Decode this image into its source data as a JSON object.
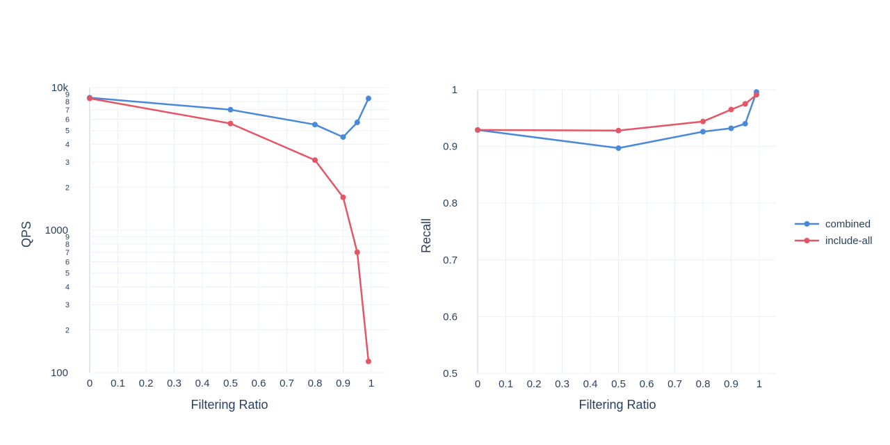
{
  "chart_data": [
    {
      "type": "line",
      "xlabel": "Filtering Ratio",
      "ylabel": "QPS",
      "yscale": "log",
      "xlim": [
        0,
        1
      ],
      "ylim": [
        100,
        10000
      ],
      "x_ticks": [
        "0",
        "0.1",
        "0.2",
        "0.3",
        "0.4",
        "0.5",
        "0.6",
        "0.7",
        "0.8",
        "0.9",
        "1"
      ],
      "y_major_ticks": [
        {
          "value": 100,
          "label": "100"
        },
        {
          "value": 1000,
          "label": "1000"
        },
        {
          "value": 10000,
          "label": "10k"
        }
      ],
      "y_minor_ticks": [
        {
          "value": 200,
          "label": "2"
        },
        {
          "value": 300,
          "label": "3"
        },
        {
          "value": 400,
          "label": "4"
        },
        {
          "value": 500,
          "label": "5"
        },
        {
          "value": 600,
          "label": "6"
        },
        {
          "value": 700,
          "label": "7"
        },
        {
          "value": 800,
          "label": "8"
        },
        {
          "value": 900,
          "label": "9"
        },
        {
          "value": 2000,
          "label": "2"
        },
        {
          "value": 3000,
          "label": "3"
        },
        {
          "value": 4000,
          "label": "4"
        },
        {
          "value": 5000,
          "label": "5"
        },
        {
          "value": 6000,
          "label": "6"
        },
        {
          "value": 7000,
          "label": "7"
        },
        {
          "value": 8000,
          "label": "8"
        },
        {
          "value": 9000,
          "label": "9"
        }
      ],
      "grid": true,
      "series": [
        {
          "name": "combined",
          "color": "#4a89d9",
          "x": [
            0,
            0.5,
            0.8,
            0.9,
            0.95,
            0.99
          ],
          "y": [
            8500,
            7000,
            5500,
            4500,
            5700,
            8400
          ]
        },
        {
          "name": "include-all",
          "color": "#e45566",
          "x": [
            0,
            0.5,
            0.8,
            0.9,
            0.95,
            0.99
          ],
          "y": [
            8400,
            5600,
            3100,
            1700,
            700,
            120
          ]
        }
      ]
    },
    {
      "type": "line",
      "xlabel": "Filtering Ratio",
      "ylabel": "Recall",
      "xlim": [
        0,
        1
      ],
      "ylim": [
        0.5,
        1
      ],
      "x_ticks": [
        "0",
        "0.1",
        "0.2",
        "0.3",
        "0.4",
        "0.5",
        "0.6",
        "0.7",
        "0.8",
        "0.9",
        "1"
      ],
      "y_ticks": [
        "0.5",
        "0.6",
        "0.7",
        "0.8",
        "0.9",
        "1"
      ],
      "grid": true,
      "series": [
        {
          "name": "combined",
          "color": "#4a89d9",
          "x": [
            0,
            0.5,
            0.8,
            0.9,
            0.95,
            0.99
          ],
          "y": [
            0.929,
            0.897,
            0.926,
            0.932,
            0.94,
            0.996
          ]
        },
        {
          "name": "include-all",
          "color": "#e45566",
          "x": [
            0,
            0.5,
            0.8,
            0.9,
            0.95,
            0.99
          ],
          "y": [
            0.929,
            0.928,
            0.944,
            0.965,
            0.975,
            0.991
          ]
        }
      ]
    }
  ],
  "legend": {
    "placement": "right",
    "items": [
      {
        "label": "combined",
        "color": "#4a89d9"
      },
      {
        "label": "include-all",
        "color": "#e45566"
      }
    ]
  }
}
